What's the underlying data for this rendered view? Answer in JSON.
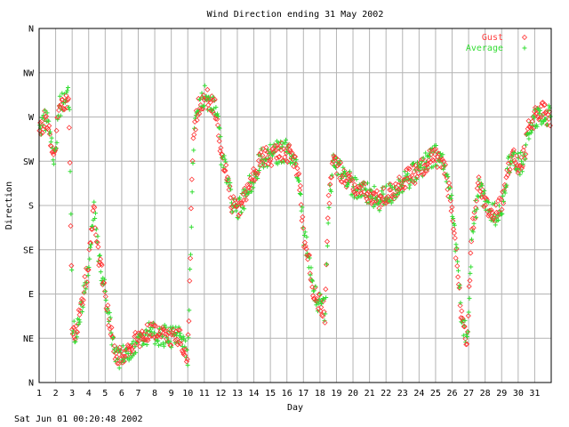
{
  "chart_data": {
    "type": "scatter",
    "title": "Wind Direction ending 31 May 2002",
    "xlabel": "Day",
    "ylabel": "Direction",
    "timestamp": "Sat Jun 01 00:20:48 2002",
    "xlim": [
      1,
      32
    ],
    "ylim": [
      0,
      360
    ],
    "grid": true,
    "legend_position": "top-right",
    "x_ticks": [
      "1",
      "2",
      "3",
      "4",
      "5",
      "6",
      "7",
      "8",
      "9",
      "10",
      "11",
      "12",
      "13",
      "14",
      "15",
      "16",
      "17",
      "18",
      "19",
      "20",
      "21",
      "22",
      "23",
      "24",
      "25",
      "26",
      "27",
      "28",
      "29",
      "30",
      "31"
    ],
    "y_ticks": [
      {
        "value": 0,
        "label": "N"
      },
      {
        "value": 45,
        "label": "NE"
      },
      {
        "value": 90,
        "label": "E"
      },
      {
        "value": 135,
        "label": "SE"
      },
      {
        "value": 180,
        "label": "S"
      },
      {
        "value": 225,
        "label": "SW"
      },
      {
        "value": 270,
        "label": "W"
      },
      {
        "value": 315,
        "label": "NW"
      },
      {
        "value": 360,
        "label": "N"
      }
    ],
    "series": [
      {
        "name": "Gust",
        "marker": "diamond",
        "color": "#ff3333"
      },
      {
        "name": "Average",
        "marker": "plus",
        "color": "#33dd33"
      }
    ],
    "trend": [
      [
        1.0,
        250
      ],
      [
        1.3,
        270
      ],
      [
        1.6,
        260
      ],
      [
        1.8,
        230
      ],
      [
        2.0,
        240
      ],
      [
        2.2,
        280
      ],
      [
        2.5,
        285
      ],
      [
        2.8,
        290
      ],
      [
        3.0,
        60
      ],
      [
        3.2,
        45
      ],
      [
        3.5,
        75
      ],
      [
        4.0,
        120
      ],
      [
        4.3,
        180
      ],
      [
        4.6,
        130
      ],
      [
        5.0,
        90
      ],
      [
        5.3,
        55
      ],
      [
        5.6,
        28
      ],
      [
        6.0,
        25
      ],
      [
        6.5,
        35
      ],
      [
        7.0,
        45
      ],
      [
        7.5,
        50
      ],
      [
        8.0,
        50
      ],
      [
        8.5,
        48
      ],
      [
        9.0,
        47
      ],
      [
        9.5,
        45
      ],
      [
        10.0,
        25
      ],
      [
        10.3,
        240
      ],
      [
        10.6,
        280
      ],
      [
        11.0,
        290
      ],
      [
        11.5,
        285
      ],
      [
        11.8,
        270
      ],
      [
        12.0,
        230
      ],
      [
        12.3,
        215
      ],
      [
        12.7,
        180
      ],
      [
        13.0,
        175
      ],
      [
        13.5,
        190
      ],
      [
        14.0,
        210
      ],
      [
        14.5,
        230
      ],
      [
        15.0,
        230
      ],
      [
        15.5,
        235
      ],
      [
        16.0,
        235
      ],
      [
        16.5,
        225
      ],
      [
        16.8,
        200
      ],
      [
        17.0,
        150
      ],
      [
        17.3,
        130
      ],
      [
        17.6,
        90
      ],
      [
        18.0,
        80
      ],
      [
        18.3,
        70
      ],
      [
        18.5,
        180
      ],
      [
        18.8,
        225
      ],
      [
        19.0,
        220
      ],
      [
        19.5,
        210
      ],
      [
        20.0,
        200
      ],
      [
        20.5,
        195
      ],
      [
        21.0,
        190
      ],
      [
        21.5,
        185
      ],
      [
        22.0,
        190
      ],
      [
        22.5,
        195
      ],
      [
        23.0,
        205
      ],
      [
        23.5,
        210
      ],
      [
        24.0,
        215
      ],
      [
        24.5,
        225
      ],
      [
        25.0,
        230
      ],
      [
        25.4,
        225
      ],
      [
        25.7,
        205
      ],
      [
        26.0,
        180
      ],
      [
        26.3,
        120
      ],
      [
        26.6,
        60
      ],
      [
        26.9,
        45
      ],
      [
        27.2,
        150
      ],
      [
        27.6,
        200
      ],
      [
        28.0,
        180
      ],
      [
        28.5,
        170
      ],
      [
        29.0,
        180
      ],
      [
        29.3,
        215
      ],
      [
        29.6,
        230
      ],
      [
        30.0,
        220
      ],
      [
        30.3,
        225
      ],
      [
        30.6,
        255
      ],
      [
        31.0,
        270
      ],
      [
        31.5,
        275
      ],
      [
        31.9,
        270
      ]
    ]
  }
}
